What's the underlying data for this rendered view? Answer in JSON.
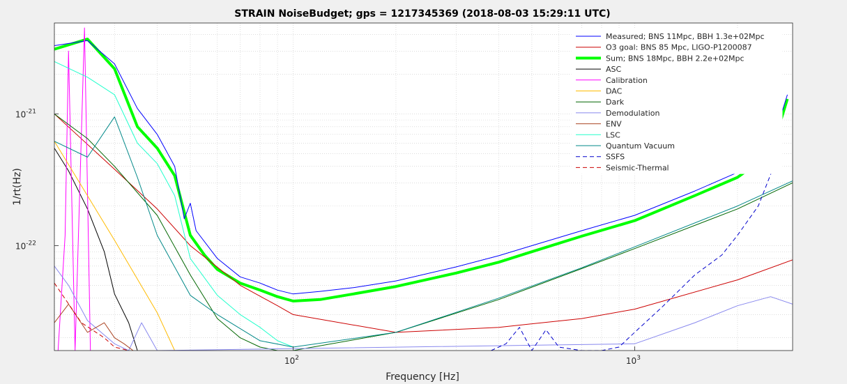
{
  "chart_data": {
    "type": "line",
    "title": "STRAIN NoiseBudget; gps = 1217345369 (2018-08-03 15:29:11 UTC)",
    "xlabel": "Frequency [Hz]",
    "ylabel": "1/rt(Hz)",
    "xscale": "log",
    "yscale": "log",
    "xlim": [
      20,
      2900
    ],
    "ylim": [
      1.6e-23,
      4.9e-21
    ],
    "grid": true,
    "legend_position": "top-right",
    "x_tick_labels": [
      {
        "base": "10",
        "exp": "2",
        "value": 100
      },
      {
        "base": "10",
        "exp": "3",
        "value": 1000
      }
    ],
    "y_tick_labels": [
      {
        "base": "10",
        "exp": "-21",
        "value": 1e-21
      },
      {
        "base": "10",
        "exp": "-22",
        "value": 1e-22
      }
    ],
    "series": [
      {
        "name": "Measured; BNS 11Mpc, BBH 1.3e+02Mpc",
        "color": "#0000ff",
        "width": 1,
        "dash": "",
        "x": [
          20,
          25,
          30,
          35,
          40,
          45,
          48,
          50,
          52,
          60,
          70,
          80,
          90,
          100,
          120,
          150,
          200,
          300,
          400,
          500,
          700,
          1000,
          1500,
          2000,
          2500,
          2800
        ],
        "y": [
          3.3e-21,
          3.6e-21,
          2.4e-21,
          1.1e-21,
          7e-22,
          4e-22,
          1.6e-22,
          2.1e-22,
          1.3e-22,
          8e-23,
          5.8e-23,
          5.2e-23,
          4.6e-23,
          4.3e-23,
          4.5e-23,
          4.8e-23,
          5.4e-23,
          6.9e-23,
          8.4e-23,
          1e-22,
          1.3e-22,
          1.7e-22,
          2.6e-22,
          3.6e-22,
          5.5e-22,
          1.4e-21
        ]
      },
      {
        "name": "O3 goal: BNS 85 Mpc, LIGO-P1200087",
        "color": "#cc0000",
        "width": 1,
        "dash": "",
        "x": [
          20,
          30,
          40,
          50,
          70,
          90,
          100,
          200,
          400,
          700,
          1000,
          2000,
          2900
        ],
        "y": [
          1e-21,
          3.8e-22,
          1.9e-22,
          1e-22,
          5e-23,
          3.5e-23,
          3e-23,
          2.2e-23,
          2.4e-23,
          2.8e-23,
          3.3e-23,
          5.5e-23,
          7.8e-23
        ]
      },
      {
        "name": "Sum; BNS 18Mpc, BBH 2.2e+02Mpc",
        "color": "#00ff00",
        "width": 4,
        "dash": "",
        "x": [
          20,
          25,
          30,
          35,
          40,
          45,
          50,
          55,
          60,
          70,
          80,
          90,
          100,
          120,
          150,
          200,
          300,
          400,
          500,
          700,
          1000,
          1500,
          2000,
          2500,
          2800
        ],
        "y": [
          3.1e-21,
          3.7e-21,
          2.2e-21,
          8e-22,
          5.5e-22,
          3.4e-22,
          1.2e-22,
          8.5e-23,
          6.6e-23,
          5.2e-23,
          4.6e-23,
          4.1e-23,
          3.8e-23,
          3.9e-23,
          4.3e-23,
          4.9e-23,
          6.2e-23,
          7.5e-23,
          9e-23,
          1.18e-22,
          1.55e-22,
          2.4e-22,
          3.3e-22,
          5e-22,
          1.3e-21
        ]
      },
      {
        "name": "ASC",
        "color": "#000000",
        "width": 1,
        "dash": "",
        "x": [
          20,
          22,
          25,
          28,
          30,
          33,
          35
        ],
        "y": [
          5.5e-22,
          3.7e-22,
          1.9e-22,
          9e-23,
          4.3e-23,
          2.6e-23,
          1.6e-23
        ]
      },
      {
        "name": "Calibration",
        "color": "#ff00ff",
        "width": 1,
        "dash": "",
        "x": [
          20.5,
          21.5,
          22,
          23,
          24.5,
          25.5
        ],
        "y": [
          1.6e-23,
          1.2e-22,
          3e-21,
          1.6e-23,
          4.5e-21,
          1.6e-23
        ]
      },
      {
        "name": "DAC",
        "color": "#ffbb00",
        "width": 1,
        "dash": "",
        "x": [
          20,
          30,
          40,
          45
        ],
        "y": [
          6.2e-22,
          1.1e-22,
          3.1e-23,
          1.6e-23
        ]
      },
      {
        "name": "Dark",
        "color": "#006600",
        "width": 1,
        "dash": "",
        "x": [
          20,
          25,
          30,
          40,
          50,
          60,
          70,
          80,
          90,
          100,
          200,
          400,
          700,
          1000,
          2000,
          2900
        ],
        "y": [
          1e-21,
          6.5e-22,
          4e-22,
          1.7e-22,
          6e-23,
          2.8e-23,
          2e-23,
          1.7e-23,
          1.6e-23,
          1.6e-23,
          2.2e-23,
          3.9e-23,
          6.7e-23,
          9.5e-23,
          1.9e-22,
          3e-22
        ]
      },
      {
        "name": "Demodulation",
        "color": "#8888ee",
        "width": 1,
        "dash": "",
        "x": [
          20,
          22,
          25,
          28,
          30,
          33,
          36,
          40,
          1000,
          1500,
          2000,
          2500,
          2900
        ],
        "y": [
          7e-23,
          5e-23,
          2.7e-23,
          2.1e-23,
          1.8e-23,
          1.6e-23,
          2.6e-23,
          1.6e-23,
          1.8e-23,
          2.6e-23,
          3.5e-23,
          4.1e-23,
          3.6e-23
        ]
      },
      {
        "name": "ENV",
        "color": "#aa4422",
        "width": 1,
        "dash": "",
        "x": [
          20,
          22,
          25,
          28,
          30,
          32,
          34
        ],
        "y": [
          2.6e-23,
          3.6e-23,
          2.2e-23,
          2.6e-23,
          2e-23,
          1.8e-23,
          1.6e-23
        ]
      },
      {
        "name": "LSC",
        "color": "#22ffcc",
        "width": 1,
        "dash": "",
        "x": [
          20,
          25,
          30,
          35,
          40,
          45,
          50,
          60,
          70,
          80,
          90,
          100
        ],
        "y": [
          2.5e-21,
          1.9e-21,
          1.4e-21,
          6e-22,
          4.2e-22,
          2.4e-22,
          8e-23,
          4.2e-23,
          3e-23,
          2.4e-23,
          1.9e-23,
          1.7e-23
        ]
      },
      {
        "name": "Quantum Vacuum",
        "color": "#008888",
        "width": 1,
        "dash": "",
        "x": [
          20,
          25,
          30,
          35,
          40,
          50,
          60,
          80,
          100,
          200,
          400,
          700,
          1000,
          2000,
          2900
        ],
        "y": [
          6.2e-22,
          4.7e-22,
          9.5e-22,
          3.3e-22,
          1.2e-22,
          4.2e-23,
          3e-23,
          1.9e-23,
          1.7e-23,
          2.2e-23,
          4e-23,
          6.8e-23,
          9.8e-23,
          2e-22,
          3.1e-22
        ]
      },
      {
        "name": "SSFS",
        "color": "#0000cc",
        "width": 1,
        "dash": "6 4",
        "x": [
          380,
          420,
          460,
          500,
          550,
          600,
          700,
          800,
          900,
          1000,
          1200,
          1500,
          1800,
          2000,
          2300,
          2600
        ],
        "y": [
          1.6e-23,
          1.8e-23,
          2.4e-23,
          1.6e-23,
          2.3e-23,
          1.7e-23,
          1.6e-23,
          1.6e-23,
          1.7e-23,
          2.2e-23,
          3.4e-23,
          6e-23,
          8.5e-23,
          1.2e-22,
          2e-22,
          4.5e-22
        ]
      },
      {
        "name": "Seismic-Thermal",
        "color": "#cc0000",
        "width": 1,
        "dash": "6 4",
        "x": [
          20,
          24,
          28,
          30,
          33
        ],
        "y": [
          5.2e-23,
          2.6e-23,
          2e-23,
          1.7e-23,
          1.6e-23
        ]
      }
    ]
  }
}
